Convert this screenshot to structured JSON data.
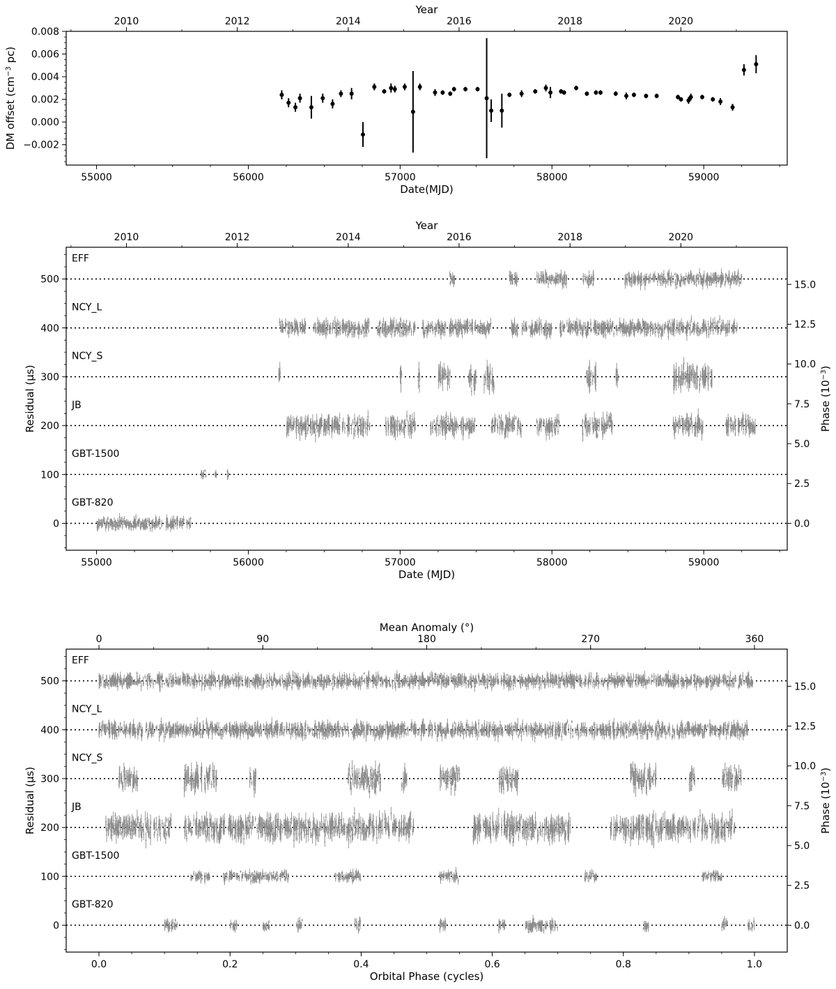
{
  "chart_data": [
    {
      "type": "scatter",
      "panel": "dm",
      "xlabel": "Date(MJD)",
      "ylabel_main": "DM offset (cm",
      "ylabel_sup": "−3",
      "ylabel_end": " pc)",
      "top_axis_label": "Year",
      "xlim": [
        54800,
        59550
      ],
      "ylim": [
        -0.0038,
        0.008
      ],
      "x_ticks": [
        55000,
        56000,
        57000,
        58000,
        59000
      ],
      "y_ticks": [
        -0.002,
        0.0,
        0.002,
        0.004,
        0.006,
        0.008
      ],
      "y_tick_labels": [
        "−0.002",
        "0.000",
        "0.002",
        "0.004",
        "0.006",
        "0.008"
      ],
      "top_ticks": [
        {
          "label": "2010",
          "mjd": 55197
        },
        {
          "label": "2012",
          "mjd": 55927
        },
        {
          "label": "2014",
          "mjd": 56658
        },
        {
          "label": "2016",
          "mjd": 57388
        },
        {
          "label": "2018",
          "mjd": 58119
        },
        {
          "label": "2020",
          "mjd": 58849
        }
      ],
      "points": [
        [
          56220,
          0.0024,
          0.0004
        ],
        [
          56265,
          0.0017,
          0.0004
        ],
        [
          56310,
          0.0013,
          0.0004
        ],
        [
          56340,
          0.0021,
          0.0004
        ],
        [
          56415,
          0.0013,
          0.001
        ],
        [
          56490,
          0.0021,
          0.0004
        ],
        [
          56555,
          0.0016,
          0.0004
        ],
        [
          56610,
          0.0025,
          0.0003
        ],
        [
          56680,
          0.0025,
          0.0005
        ],
        [
          56755,
          -0.0011,
          0.0011
        ],
        [
          56830,
          0.0031,
          0.0003
        ],
        [
          56895,
          0.0027,
          0.0002
        ],
        [
          56940,
          0.003,
          0.0004
        ],
        [
          56965,
          0.0029,
          0.0003
        ],
        [
          57030,
          0.0031,
          0.0003
        ],
        [
          57085,
          0.0009,
          0.0036
        ],
        [
          57130,
          0.0031,
          0.0003
        ],
        [
          57230,
          0.0026,
          0.0003
        ],
        [
          57280,
          0.0026,
          0.0002
        ],
        [
          57330,
          0.0025,
          0.0002
        ],
        [
          57355,
          0.0029,
          0.0002
        ],
        [
          57430,
          0.0029,
          0.0002
        ],
        [
          57510,
          0.0029,
          0.0002
        ],
        [
          57570,
          0.0021,
          0.0053
        ],
        [
          57600,
          0.001,
          0.001
        ],
        [
          57670,
          0.001,
          0.0015
        ],
        [
          57720,
          0.0024,
          0.0002
        ],
        [
          57800,
          0.0025,
          0.0003
        ],
        [
          57890,
          0.0027,
          0.0002
        ],
        [
          57960,
          0.003,
          0.0003
        ],
        [
          57990,
          0.0026,
          0.0005
        ],
        [
          58060,
          0.0027,
          0.0002
        ],
        [
          58080,
          0.0026,
          0.0002
        ],
        [
          58160,
          0.003,
          0.0002
        ],
        [
          58230,
          0.0025,
          0.0002
        ],
        [
          58290,
          0.0026,
          0.0002
        ],
        [
          58320,
          0.0026,
          0.0002
        ],
        [
          58420,
          0.0025,
          0.0002
        ],
        [
          58490,
          0.0023,
          0.0003
        ],
        [
          58540,
          0.0024,
          0.0002
        ],
        [
          58620,
          0.0023,
          0.0002
        ],
        [
          58690,
          0.0023,
          0.0002
        ],
        [
          58830,
          0.0022,
          0.0002
        ],
        [
          58850,
          0.002,
          0.0002
        ],
        [
          58900,
          0.0019,
          0.0003
        ],
        [
          58915,
          0.0022,
          0.0003
        ],
        [
          58990,
          0.0022,
          0.0002
        ],
        [
          59060,
          0.002,
          0.0002
        ],
        [
          59110,
          0.0018,
          0.0003
        ],
        [
          59190,
          0.0013,
          0.0003
        ],
        [
          59265,
          0.0046,
          0.0005
        ],
        [
          59345,
          0.0051,
          0.0008
        ]
      ]
    },
    {
      "type": "scatter",
      "panel": "residual_vs_date",
      "xlabel": "Date (MJD)",
      "ylabel_left": "Residual (μs)",
      "ylabel_right_main": "Phase (10",
      "ylabel_right_sup": "−3",
      "ylabel_right_end": ")",
      "top_axis_label": "Year",
      "xlim": [
        54800,
        59550
      ],
      "ylim": [
        -55,
        565
      ],
      "x_ticks": [
        55000,
        56000,
        57000,
        58000,
        59000
      ],
      "y_ticks": [
        0,
        100,
        200,
        300,
        400,
        500
      ],
      "right_ticks": [
        {
          "label": "0.0",
          "value": 0
        },
        {
          "label": "2.5",
          "value": 81.5
        },
        {
          "label": "5.0",
          "value": 163
        },
        {
          "label": "7.5",
          "value": 244.5
        },
        {
          "label": "10.0",
          "value": 326
        },
        {
          "label": "12.5",
          "value": 407.5
        },
        {
          "label": "15.0",
          "value": 489
        }
      ],
      "top_ticks": [
        {
          "label": "2010",
          "mjd": 55197
        },
        {
          "label": "2012",
          "mjd": 55927
        },
        {
          "label": "2014",
          "mjd": 56658
        },
        {
          "label": "2016",
          "mjd": 57388
        },
        {
          "label": "2018",
          "mjd": 58119
        },
        {
          "label": "2020",
          "mjd": 58849
        }
      ],
      "series": [
        {
          "name": "EFF",
          "offset": 500,
          "spread": 9,
          "ranges": [
            [
              57320,
              57360
            ],
            [
              57720,
              57780
            ],
            [
              57900,
              58100
            ],
            [
              58200,
              58280
            ],
            [
              58480,
              59250
            ]
          ]
        },
        {
          "name": "NCY_L",
          "offset": 400,
          "spread": 10,
          "ranges": [
            [
              56200,
              56380
            ],
            [
              56430,
              56800
            ],
            [
              56850,
              57100
            ],
            [
              57150,
              57300
            ],
            [
              57320,
              57600
            ],
            [
              57730,
              58000
            ],
            [
              58050,
              59220
            ]
          ]
        },
        {
          "name": "NCY_S",
          "offset": 300,
          "spread": 16,
          "ranges": [
            [
              56200,
              56210
            ],
            [
              57000,
              57010
            ],
            [
              57120,
              57130
            ],
            [
              57250,
              57330
            ],
            [
              57450,
              57500
            ],
            [
              57550,
              57620
            ],
            [
              58220,
              58290
            ],
            [
              58420,
              58440
            ],
            [
              58800,
              59060
            ]
          ]
        },
        {
          "name": "JB",
          "offset": 200,
          "spread": 13,
          "ranges": [
            [
              56250,
              56800
            ],
            [
              56900,
              57100
            ],
            [
              57200,
              57500
            ],
            [
              57600,
              57800
            ],
            [
              57900,
              58050
            ],
            [
              58200,
              58400
            ],
            [
              58800,
              59000
            ],
            [
              59140,
              59340
            ]
          ]
        },
        {
          "name": "GBT-1500",
          "offset": 100,
          "spread": 6,
          "ranges": [
            [
              55690,
              55720
            ],
            [
              55780,
              55790
            ],
            [
              55860,
              55870
            ]
          ]
        },
        {
          "name": "GBT-820",
          "offset": 0,
          "spread": 8,
          "ranges": [
            [
              55000,
              55620
            ]
          ]
        }
      ]
    },
    {
      "type": "scatter",
      "panel": "residual_vs_orbital_phase",
      "xlabel": "Orbital Phase (cycles)",
      "ylabel_left": "Residual (μs)",
      "ylabel_right_main": "Phase (10",
      "ylabel_right_sup": "−3",
      "ylabel_right_end": ")",
      "top_axis_label": "Mean Anomaly (°)",
      "xlim": [
        -0.05,
        1.05
      ],
      "ylim": [
        -55,
        565
      ],
      "x_ticks": [
        0.0,
        0.2,
        0.4,
        0.6,
        0.8,
        1.0
      ],
      "x_tick_labels": [
        "0.0",
        "0.2",
        "0.4",
        "0.6",
        "0.8",
        "1.0"
      ],
      "y_ticks": [
        0,
        100,
        200,
        300,
        400,
        500
      ],
      "right_ticks": [
        {
          "label": "0.0",
          "value": 0
        },
        {
          "label": "2.5",
          "value": 81.5
        },
        {
          "label": "5.0",
          "value": 163
        },
        {
          "label": "7.5",
          "value": 244.5
        },
        {
          "label": "10.0",
          "value": 326
        },
        {
          "label": "12.5",
          "value": 407.5
        },
        {
          "label": "15.0",
          "value": 489
        }
      ],
      "top_ticks": [
        {
          "label": "0",
          "value": 0
        },
        {
          "label": "90",
          "value": 0.25
        },
        {
          "label": "180",
          "value": 0.5
        },
        {
          "label": "270",
          "value": 0.75
        },
        {
          "label": "360",
          "value": 1.0
        }
      ],
      "series": [
        {
          "name": "EFF",
          "offset": 500,
          "spread": 9,
          "ranges": [
            [
              0.0,
              1.0
            ]
          ]
        },
        {
          "name": "NCY_L",
          "offset": 400,
          "spread": 10,
          "ranges": [
            [
              0.0,
              0.99
            ]
          ]
        },
        {
          "name": "NCY_S",
          "offset": 300,
          "spread": 16,
          "ranges": [
            [
              0.03,
              0.06
            ],
            [
              0.13,
              0.18
            ],
            [
              0.23,
              0.24
            ],
            [
              0.38,
              0.43
            ],
            [
              0.46,
              0.47
            ],
            [
              0.52,
              0.55
            ],
            [
              0.61,
              0.64
            ],
            [
              0.81,
              0.85
            ],
            [
              0.9,
              0.91
            ],
            [
              0.95,
              0.98
            ]
          ]
        },
        {
          "name": "JB",
          "offset": 200,
          "spread": 16,
          "ranges": [
            [
              0.01,
              0.11
            ],
            [
              0.13,
              0.48
            ],
            [
              0.57,
              0.72
            ],
            [
              0.78,
              0.97
            ]
          ]
        },
        {
          "name": "GBT-1500",
          "offset": 100,
          "spread": 7,
          "ranges": [
            [
              0.14,
              0.17
            ],
            [
              0.19,
              0.29
            ],
            [
              0.36,
              0.4
            ],
            [
              0.52,
              0.55
            ],
            [
              0.74,
              0.76
            ],
            [
              0.92,
              0.95
            ]
          ]
        },
        {
          "name": "GBT-820",
          "offset": 0,
          "spread": 8,
          "ranges": [
            [
              0.1,
              0.12
            ],
            [
              0.2,
              0.21
            ],
            [
              0.25,
              0.26
            ],
            [
              0.3,
              0.31
            ],
            [
              0.39,
              0.4
            ],
            [
              0.52,
              0.53
            ],
            [
              0.61,
              0.62
            ],
            [
              0.65,
              0.7
            ],
            [
              0.83,
              0.84
            ],
            [
              0.95,
              0.96
            ],
            [
              0.99,
              1.0
            ]
          ]
        }
      ]
    }
  ]
}
